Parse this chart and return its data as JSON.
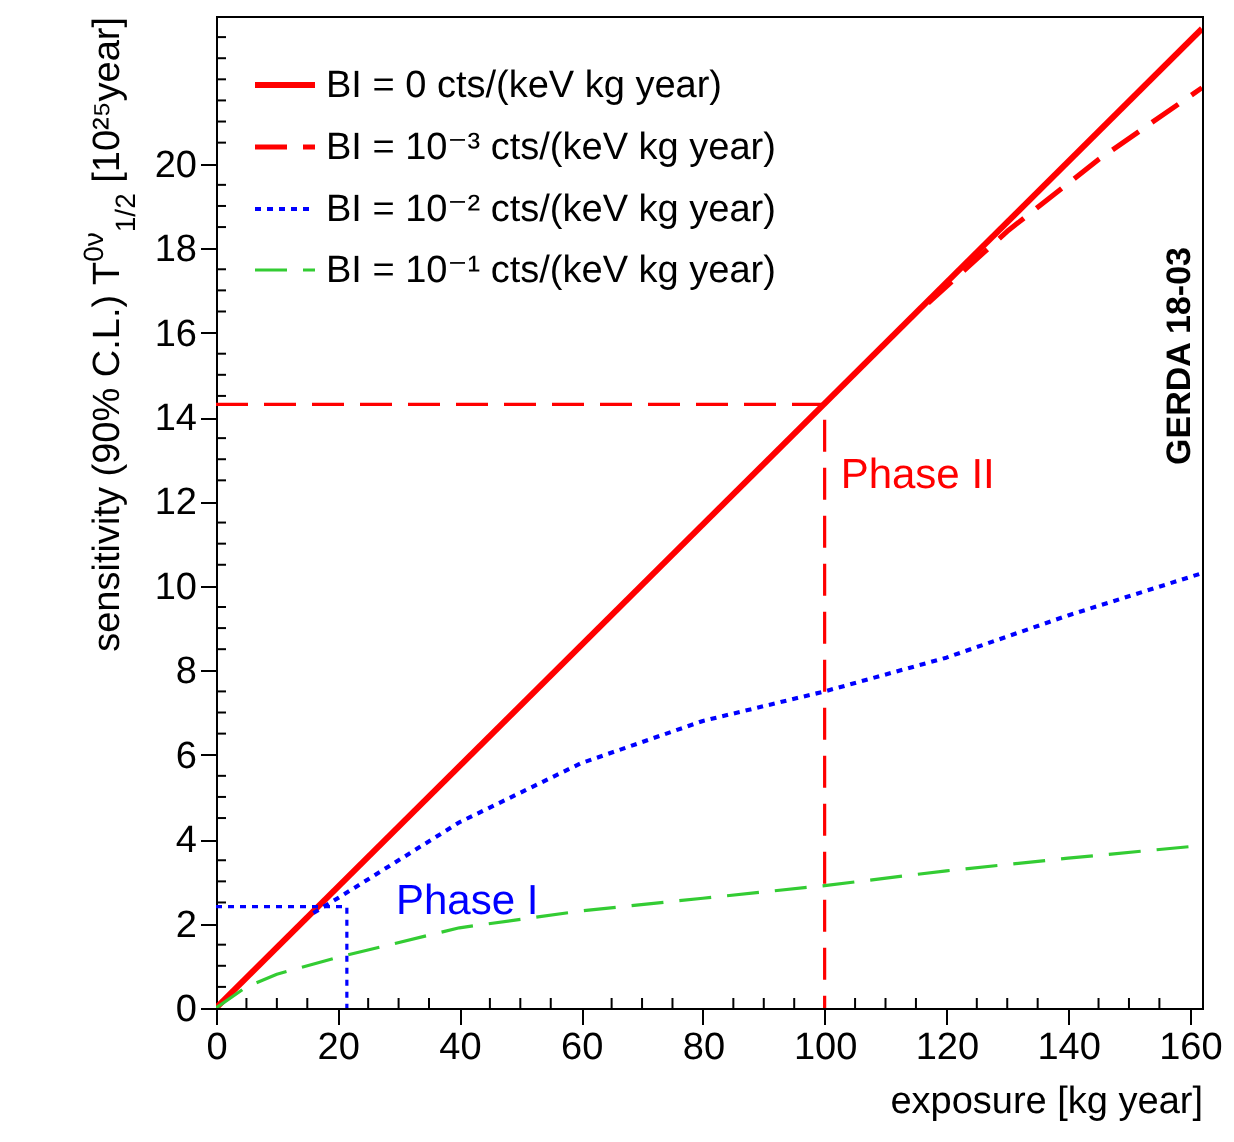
{
  "chart_data": {
    "type": "line",
    "xlabel": "exposure [kg year]",
    "ylabel": "sensitivity (90% C.L.)  T$^{0ν}$$_{1/2}$ [10²⁵year]",
    "xlim": [
      0,
      162
    ],
    "ylim": [
      0,
      23.5
    ],
    "xticks": [
      0,
      {
        "value": 5,
        "label": null
      },
      {
        "value": 10,
        "label": null
      },
      {
        "value": 15,
        "label": null
      },
      20,
      {
        "value": 25,
        "label": null
      },
      {
        "value": 30,
        "label": null
      },
      {
        "value": 35,
        "label": null
      },
      40,
      {
        "value": 45,
        "label": null
      },
      {
        "value": 50,
        "label": null
      },
      {
        "value": 55,
        "label": null
      },
      60,
      {
        "value": 65,
        "label": null
      },
      {
        "value": 70,
        "label": null
      },
      {
        "value": 75,
        "label": null
      },
      80,
      {
        "value": 85,
        "label": null
      },
      {
        "value": 90,
        "label": null
      },
      {
        "value": 95,
        "label": null
      },
      100,
      {
        "value": 105,
        "label": null
      },
      {
        "value": 110,
        "label": null
      },
      {
        "value": 115,
        "label": null
      },
      120,
      {
        "value": 125,
        "label": null
      },
      {
        "value": 130,
        "label": null
      },
      {
        "value": 135,
        "label": null
      },
      140,
      {
        "value": 145,
        "label": null
      },
      {
        "value": 150,
        "label": null
      },
      {
        "value": 155,
        "label": null
      },
      160
    ],
    "yticks": [
      0,
      {
        "value": 0.5,
        "label": null
      },
      {
        "value": 1,
        "label": null
      },
      {
        "value": 1.5,
        "label": null
      },
      2,
      {
        "value": 2.5,
        "label": null
      },
      {
        "value": 3,
        "label": null
      },
      {
        "value": 3.5,
        "label": null
      },
      4,
      {
        "value": 4.5,
        "label": null
      },
      {
        "value": 5,
        "label": null
      },
      {
        "value": 5.5,
        "label": null
      },
      6,
      {
        "value": 6.5,
        "label": null
      },
      {
        "value": 7,
        "label": null
      },
      {
        "value": 7.5,
        "label": null
      },
      8,
      {
        "value": 8.5,
        "label": null
      },
      {
        "value": 9,
        "label": null
      },
      {
        "value": 9.5,
        "label": null
      },
      10,
      {
        "value": 10.5,
        "label": null
      },
      {
        "value": 11,
        "label": null
      },
      {
        "value": 11.5,
        "label": null
      },
      12,
      {
        "value": 12.5,
        "label": null
      },
      {
        "value": 13,
        "label": null
      },
      {
        "value": 13.5,
        "label": null
      },
      14,
      {
        "value": 14.5,
        "label": null
      },
      {
        "value": 15,
        "label": null
      },
      {
        "value": 15.5,
        "label": null
      },
      16,
      {
        "value": 16.5,
        "label": null
      },
      {
        "value": 17,
        "label": null
      },
      {
        "value": 17.5,
        "label": null
      },
      18,
      {
        "value": 18.5,
        "label": null
      },
      {
        "value": 19,
        "label": null
      },
      {
        "value": 19.5,
        "label": null
      },
      20,
      {
        "value": 20.5,
        "label": null
      },
      {
        "value": 21,
        "label": null
      },
      {
        "value": 21.5,
        "label": null
      },
      {
        "value": 22,
        "label": null
      },
      {
        "value": 22.5,
        "label": null
      },
      {
        "value": 23,
        "label": null
      }
    ],
    "grid": false,
    "legend": "top left",
    "series": [
      {
        "name": "BI =   0    cts/(keV kg year)",
        "color": "#ff0000",
        "line_style": "solid",
        "x": [
          0,
          162
        ],
        "values": [
          0,
          23.2
        ]
      },
      {
        "name": "BI = 10⁻³ cts/(keV kg year)",
        "color": "#ff0000",
        "line_style": "dashed",
        "x": [
          117,
          130,
          145,
          162
        ],
        "values": [
          16.7,
          18.4,
          20.1,
          21.8
        ]
      },
      {
        "name": "BI = 10⁻² cts/(keV kg year)",
        "color": "#0000ff",
        "line_style": "dotted",
        "x": [
          16,
          20,
          40,
          60,
          80,
          100,
          120,
          140,
          162
        ],
        "values": [
          2.25,
          2.6,
          4.4,
          5.8,
          6.8,
          7.5,
          8.3,
          9.3,
          10.3
        ]
      },
      {
        "name": "BI = 10⁻¹ cts/(keV kg year)",
        "color": "#33cc33",
        "line_style": "dashed",
        "x": [
          0,
          5,
          10,
          20,
          40,
          60,
          80,
          100,
          120,
          140,
          162
        ],
        "values": [
          0,
          0.5,
          0.8,
          1.2,
          1.9,
          2.3,
          2.6,
          2.9,
          3.25,
          3.55,
          3.85
        ]
      },
      {
        "color": "#ff0000",
        "line_style": "dashed",
        "x": [
          0,
          100,
          100
        ],
        "values": [
          14.3,
          14.3,
          0
        ]
      },
      {
        "color": "#0000ff",
        "line_style": "dotted",
        "x": [
          0,
          21.5,
          21.5
        ],
        "values": [
          2.4,
          2.4,
          0
        ]
      }
    ],
    "annotations": [
      {
        "text": "Phase II",
        "x": 100,
        "y": 12.6
      },
      "Phase I",
      "GERDA 18-03"
    ]
  }
}
